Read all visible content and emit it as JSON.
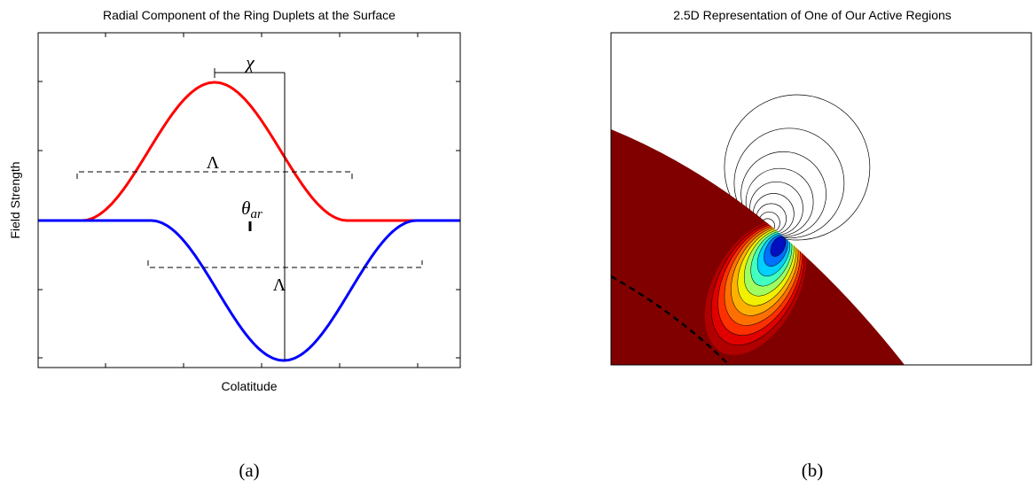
{
  "panel_a": {
    "title": "Radial Component of the Ring Duplets at the Surface",
    "y_label": "Field Strength",
    "x_label": "Colatitude",
    "annotations": {
      "chi": "χ",
      "lambda_top": "Λ",
      "theta_symbol": "θ",
      "theta_subscript": "ar",
      "lambda_bottom": "Λ"
    },
    "caption": "(a)"
  },
  "panel_b": {
    "title": "2.5D Representation of One of Our Active Regions",
    "caption": "(b)"
  }
}
